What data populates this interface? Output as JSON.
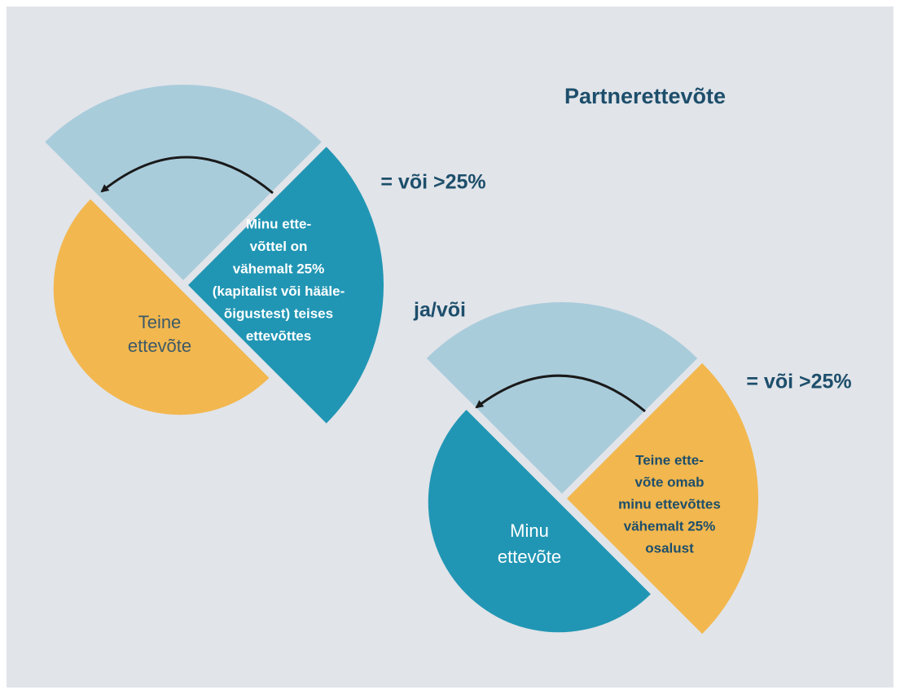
{
  "title": "Partnerettevõte",
  "connector": "ja/või",
  "diagrams": [
    {
      "threshold": "= või >25%",
      "owner_label": [
        "Minu ette-",
        "võttel on",
        "vähemalt 25%",
        "(kapitalist või hääle-",
        "õigustest) teises",
        "ettevõttes"
      ],
      "other_label": [
        "Teine",
        "ettevõte"
      ]
    },
    {
      "threshold": "= või >25%",
      "owner_label": [
        "Teine ette-",
        "võte omab",
        "minu ettevõttes",
        "vähemalt 25%",
        "osalust"
      ],
      "other_label": [
        "Minu",
        "ettevõte"
      ]
    }
  ]
}
